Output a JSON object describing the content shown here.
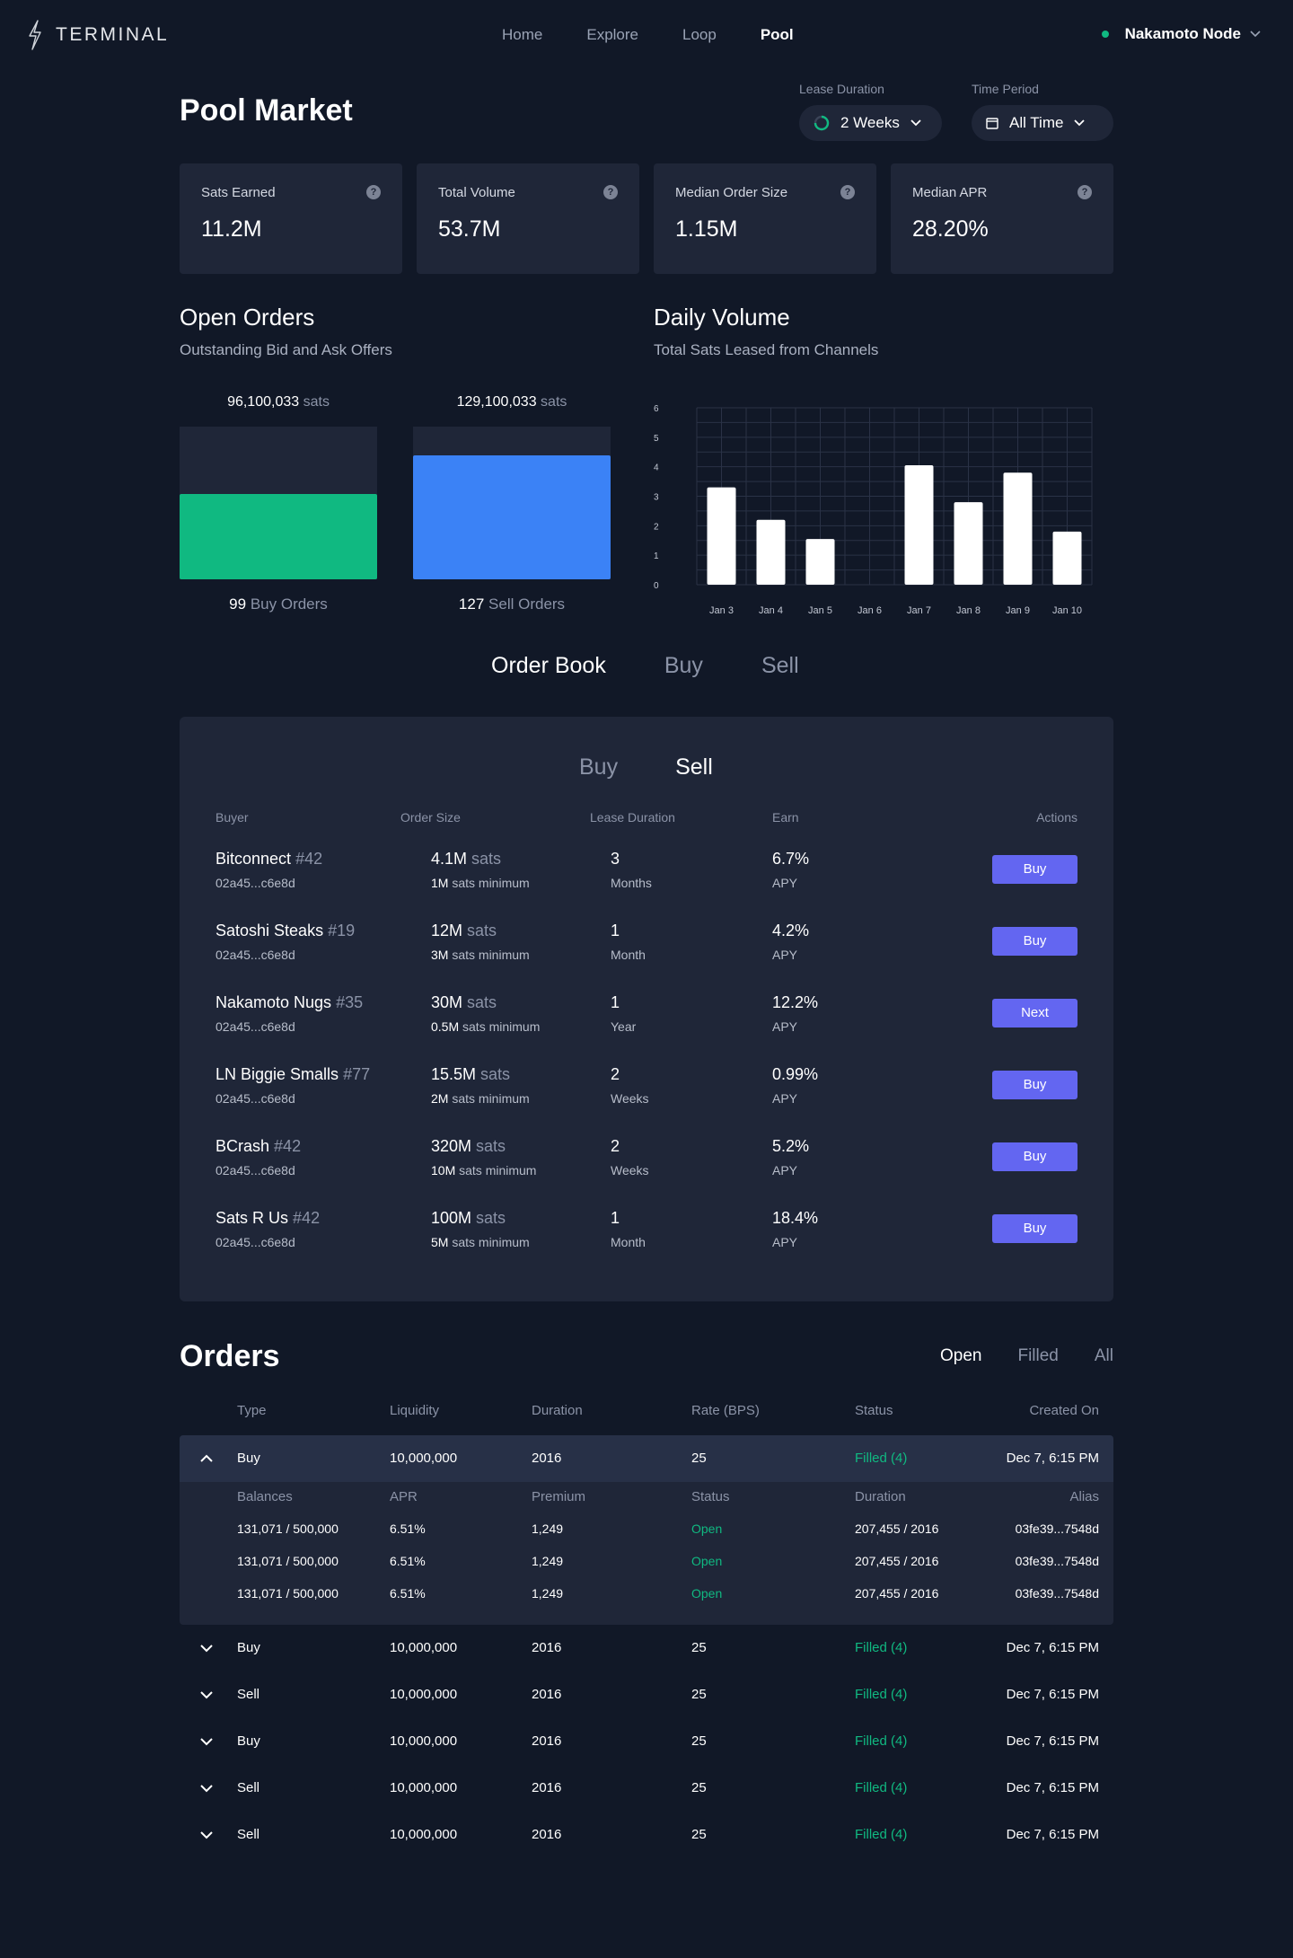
{
  "brand": {
    "name": "TERMINAL"
  },
  "nav": {
    "items": [
      "Home",
      "Explore",
      "Loop",
      "Pool"
    ],
    "active": 3
  },
  "node": {
    "name": "Nakamoto Node",
    "status_color": "#10b981"
  },
  "header": {
    "title": "Pool Market",
    "lease_duration": {
      "label": "Lease Duration",
      "value": "2 Weeks"
    },
    "time_period": {
      "label": "Time Period",
      "value": "All Time"
    }
  },
  "stats": [
    {
      "label": "Sats Earned",
      "value": "11.2M"
    },
    {
      "label": "Total Volume",
      "value": "53.7M"
    },
    {
      "label": "Median Order Size",
      "value": "1.15M"
    },
    {
      "label": "Median APR",
      "value": "28.20%"
    }
  ],
  "open_orders": {
    "title": "Open Orders",
    "subtitle": "Outstanding Bid and Ask Offers",
    "unit": "sats",
    "buy": {
      "amount": "96,100,033",
      "count": "99",
      "label": "Buy Orders",
      "fill": 0.56,
      "color": "#10b981"
    },
    "sell": {
      "amount": "129,100,033",
      "count": "127",
      "label": "Sell Orders",
      "fill": 0.81,
      "color": "#3b82f6"
    }
  },
  "daily_volume": {
    "title": "Daily Volume",
    "subtitle": "Total Sats Leased from Channels"
  },
  "chart_data": {
    "type": "bar",
    "categories": [
      "Jan 3",
      "Jan 4",
      "Jan 5",
      "Jan 6",
      "Jan 7",
      "Jan 8",
      "Jan 9",
      "Jan 10"
    ],
    "values": [
      3.3,
      2.2,
      1.55,
      0,
      4.05,
      2.8,
      3.8,
      1.8
    ],
    "ylim": [
      0,
      6
    ],
    "yticks": [
      0,
      1,
      2,
      3,
      4,
      5,
      6
    ],
    "grid": true,
    "bar_color": "#ffffff"
  },
  "order_book": {
    "tabs": [
      "Order Book",
      "Buy",
      "Sell"
    ],
    "active_tab": 0,
    "subtabs": [
      "Buy",
      "Sell"
    ],
    "active_subtab": 1,
    "columns": [
      "Buyer",
      "Order Size",
      "Lease Duration",
      "Earn",
      "Actions"
    ],
    "rows": [
      {
        "name": "Bitconnect",
        "num": "#42",
        "key": "02a45...c6e8d",
        "size": "4.1M",
        "unit": "sats",
        "min": "1M",
        "min_label": "sats minimum",
        "dur": "3",
        "dur_unit": "Months",
        "earn": "6.7%",
        "earn_unit": "APY",
        "action": "Buy"
      },
      {
        "name": "Satoshi Steaks",
        "num": "#19",
        "key": "02a45...c6e8d",
        "size": "12M",
        "unit": "sats",
        "min": "3M",
        "min_label": "sats minimum",
        "dur": "1",
        "dur_unit": "Month",
        "earn": "4.2%",
        "earn_unit": "APY",
        "action": "Buy"
      },
      {
        "name": "Nakamoto Nugs",
        "num": "#35",
        "key": "02a45...c6e8d",
        "size": "30M",
        "unit": "sats",
        "min": "0.5M",
        "min_label": "sats minimum",
        "dur": "1",
        "dur_unit": "Year",
        "earn": "12.2%",
        "earn_unit": "APY",
        "action": "Next"
      },
      {
        "name": "LN Biggie Smalls",
        "num": "#77",
        "key": "02a45...c6e8d",
        "size": "15.5M",
        "unit": "sats",
        "min": "2M",
        "min_label": "sats minimum",
        "dur": "2",
        "dur_unit": "Weeks",
        "earn": "0.99%",
        "earn_unit": "APY",
        "action": "Buy"
      },
      {
        "name": "BCrash",
        "num": "#42",
        "key": "02a45...c6e8d",
        "size": "320M",
        "unit": "sats",
        "min": "10M",
        "min_label": "sats minimum",
        "dur": "2",
        "dur_unit": "Weeks",
        "earn": "5.2%",
        "earn_unit": "APY",
        "action": "Buy"
      },
      {
        "name": "Sats R Us",
        "num": "#42",
        "key": "02a45...c6e8d",
        "size": "100M",
        "unit": "sats",
        "min": "5M",
        "min_label": "sats minimum",
        "dur": "1",
        "dur_unit": "Month",
        "earn": "18.4%",
        "earn_unit": "APY",
        "action": "Buy"
      }
    ]
  },
  "orders": {
    "title": "Orders",
    "tabs": [
      "Open",
      "Filled",
      "All"
    ],
    "active_tab": 0,
    "columns": [
      "Type",
      "Liquidity",
      "Duration",
      "Rate (BPS)",
      "Status",
      "Created On"
    ],
    "expanded": {
      "row": {
        "type": "Buy",
        "liquidity": "10,000,000",
        "duration": "2016",
        "rate": "25",
        "status": "Filled (4)",
        "created": "Dec 7, 6:15 PM"
      },
      "sub_columns": [
        "Balances",
        "APR",
        "Premium",
        "Status",
        "Duration",
        "Alias"
      ],
      "sub_rows": [
        {
          "balances": "131,071 / 500,000",
          "apr": "6.51%",
          "premium": "1,249",
          "status": "Open",
          "duration": "207,455 / 2016",
          "alias": "03fe39...7548d"
        },
        {
          "balances": "131,071 / 500,000",
          "apr": "6.51%",
          "premium": "1,249",
          "status": "Open",
          "duration": "207,455 / 2016",
          "alias": "03fe39...7548d"
        },
        {
          "balances": "131,071 / 500,000",
          "apr": "6.51%",
          "premium": "1,249",
          "status": "Open",
          "duration": "207,455 / 2016",
          "alias": "03fe39...7548d"
        }
      ]
    },
    "rows": [
      {
        "type": "Buy",
        "liquidity": "10,000,000",
        "duration": "2016",
        "rate": "25",
        "status": "Filled (4)",
        "created": "Dec 7, 6:15 PM"
      },
      {
        "type": "Sell",
        "liquidity": "10,000,000",
        "duration": "2016",
        "rate": "25",
        "status": "Filled (4)",
        "created": "Dec 7, 6:15 PM"
      },
      {
        "type": "Buy",
        "liquidity": "10,000,000",
        "duration": "2016",
        "rate": "25",
        "status": "Filled (4)",
        "created": "Dec 7, 6:15 PM"
      },
      {
        "type": "Sell",
        "liquidity": "10,000,000",
        "duration": "2016",
        "rate": "25",
        "status": "Filled (4)",
        "created": "Dec 7, 6:15 PM"
      },
      {
        "type": "Sell",
        "liquidity": "10,000,000",
        "duration": "2016",
        "rate": "25",
        "status": "Filled (4)",
        "created": "Dec 7, 6:15 PM"
      }
    ]
  }
}
